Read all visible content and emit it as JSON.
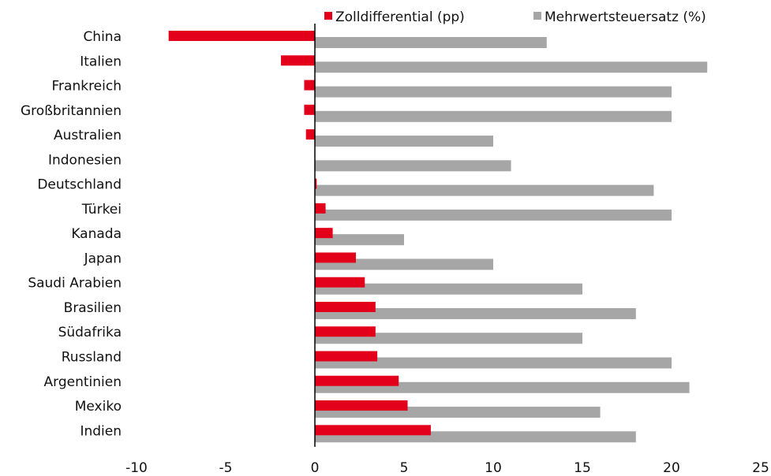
{
  "chart_data": {
    "type": "bar",
    "orientation": "horizontal",
    "categories": [
      "China",
      "Italien",
      "Frankreich",
      "Großbritannien",
      "Australien",
      "Indonesien",
      "Deutschland",
      "Türkei",
      "Kanada",
      "Japan",
      "Saudi Arabien",
      "Brasilien",
      "Südafrika",
      "Russland",
      "Argentinien",
      "Mexiko",
      "Indien"
    ],
    "series": [
      {
        "name": "Zolldifferential (pp)",
        "color": "#e2001a",
        "values": [
          -8.2,
          -1.9,
          -0.6,
          -0.6,
          -0.5,
          0.0,
          0.1,
          0.6,
          1.0,
          2.3,
          2.8,
          3.4,
          3.4,
          3.5,
          4.7,
          5.2,
          6.5
        ]
      },
      {
        "name": "Mehrwertsteuersatz (%)",
        "color": "#a6a6a6",
        "values": [
          13,
          22,
          20,
          20,
          10,
          11,
          19,
          20,
          5,
          10,
          15,
          18,
          15,
          20,
          21,
          16,
          18
        ]
      }
    ],
    "xlim": [
      -10,
      25
    ],
    "xticks": [
      "-10",
      "-5",
      "0",
      "5",
      "10",
      "15",
      "20",
      "25"
    ],
    "grid": false,
    "legend_position": "top-right"
  }
}
